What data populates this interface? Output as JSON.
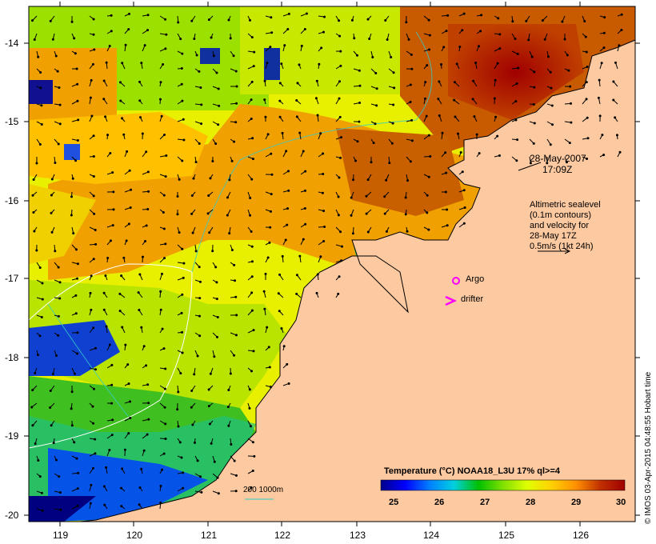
{
  "map": {
    "date_label": "28-May-2007",
    "time_label": "17:09Z",
    "altimetry_note": [
      "Altimetric sealevel",
      "(0.1m contours)",
      "and velocity for",
      "28-May 17Z",
      "0.5m/s (1kt 24h)"
    ],
    "legend_argo": "Argo",
    "legend_drifter": "drifter",
    "depth_contours_label": "200  1000m",
    "credit": "© IMOS 03-Apr-2015 04:48:55 Hobart time",
    "colors": {
      "land": "#fcc9a0",
      "argo_marker": "#ff00ff",
      "drifter_marker": "#ff00ff",
      "depth_contour_200": "#bfbfbf",
      "depth_contour_1000": "#33cccc",
      "sealevel_contour": "#ffffff"
    }
  },
  "axes": {
    "longitude_ticks": [
      "119",
      "120",
      "121",
      "122",
      "123",
      "124",
      "125",
      "126"
    ],
    "latitude_ticks": [
      "-14",
      "-15",
      "-16",
      "-17",
      "-18",
      "-19",
      "-20"
    ]
  },
  "colorbar": {
    "title": "Temperature (°C) NOAA18_L3U 17% ql>=4",
    "ticks": [
      "25",
      "26",
      "27",
      "28",
      "29",
      "30"
    ],
    "range": [
      24.5,
      30.5
    ],
    "colors": [
      "#00008b",
      "#0000ff",
      "#0080ff",
      "#00c0ff",
      "#00e0c0",
      "#00c000",
      "#80e000",
      "#e0ff00",
      "#ffd000",
      "#ff9000",
      "#e06000",
      "#c03000",
      "#a00000"
    ]
  }
}
